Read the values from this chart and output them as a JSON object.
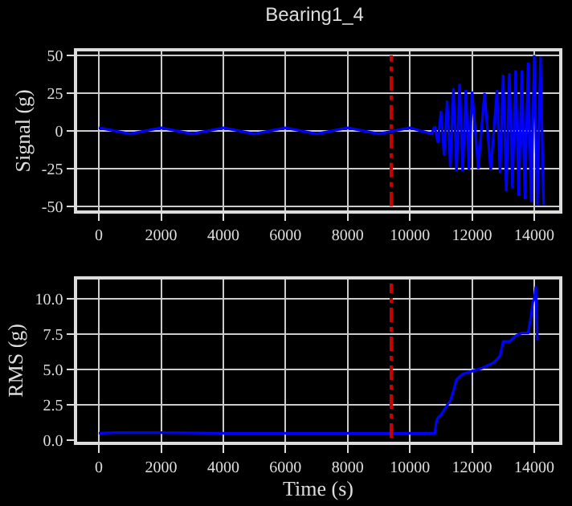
{
  "chart_data": [
    {
      "type": "line",
      "title": "Bearing1_4",
      "ylabel": "Signal (g)",
      "x": [
        0,
        1000,
        2000,
        3000,
        4000,
        5000,
        6000,
        7000,
        8000,
        9000,
        10000,
        10700,
        10800,
        10900,
        11000,
        11100,
        11200,
        11300,
        11400,
        11500,
        11600,
        11700,
        11800,
        11900,
        12000,
        12200,
        12400,
        12600,
        12800,
        12900,
        13000,
        13100,
        13200,
        13300,
        13400,
        13500,
        13600,
        13700,
        13800,
        13900,
        14000,
        14100,
        14200,
        14300
      ],
      "series": [
        {
          "color": "#0000ff",
          "values": [
            2,
            -2,
            2,
            -2,
            2,
            -2,
            2,
            -2,
            2,
            -2,
            2,
            -2,
            3,
            -8,
            13,
            -16,
            20,
            -24,
            28,
            -27,
            31,
            -27,
            27,
            -26,
            26,
            -25,
            25,
            -26,
            27,
            -28,
            37,
            -40,
            38,
            -38,
            40,
            -43,
            40,
            -45,
            45,
            -47,
            50,
            -49,
            49,
            -49
          ]
        }
      ],
      "xlim": [
        -700,
        14800
      ],
      "ylim": [
        -52.5,
        52.5
      ],
      "xticks": [
        0,
        2000,
        4000,
        6000,
        8000,
        10000,
        12000,
        14000
      ],
      "yticks": [
        -50,
        -25,
        0,
        25,
        50
      ],
      "grid": true,
      "line_style": "solid",
      "marker": "none",
      "ref_lines": [
        {
          "axis": "x",
          "value": 9400,
          "color": "#cc0000",
          "line_style": "dashed"
        }
      ]
    },
    {
      "type": "line",
      "xlabel": "Time (s)",
      "ylabel": "RMS (g)",
      "x": [
        0,
        500,
        2000,
        4000,
        6000,
        8000,
        10000,
        10800,
        10850,
        10900,
        11000,
        11200,
        11300,
        11400,
        11500,
        11700,
        12000,
        12300,
        12500,
        12700,
        12900,
        13000,
        13200,
        13400,
        13600,
        13800,
        13900,
        13950,
        14000,
        14050,
        14100
      ],
      "series": [
        {
          "color": "#0000ff",
          "values": [
            0.5,
            0.55,
            0.55,
            0.5,
            0.5,
            0.5,
            0.5,
            0.5,
            1.3,
            1.6,
            1.8,
            2.5,
            2.8,
            3.5,
            4.3,
            4.7,
            4.9,
            5.1,
            5.3,
            5.5,
            6.0,
            7.0,
            7.0,
            7.4,
            7.6,
            7.6,
            8.8,
            9.8,
            10.0,
            10.9,
            7.1
          ]
        }
      ],
      "xlim": [
        -700,
        14800
      ],
      "ylim": [
        -0.1,
        11.4
      ],
      "xticks": [
        0,
        2000,
        4000,
        6000,
        8000,
        10000,
        12000,
        14000
      ],
      "yticks": [
        {
          "value": 0,
          "label": "0.0"
        },
        {
          "value": 2.5,
          "label": "2.5"
        },
        {
          "value": 5,
          "label": "5.0"
        },
        {
          "value": 7.5,
          "label": "7.5"
        },
        {
          "value": 10,
          "label": "10.0"
        }
      ],
      "grid": true,
      "line_style": "solid",
      "marker": "none",
      "ref_lines": [
        {
          "axis": "x",
          "value": 9400,
          "color": "#cc0000",
          "line_style": "dashed"
        }
      ]
    }
  ]
}
